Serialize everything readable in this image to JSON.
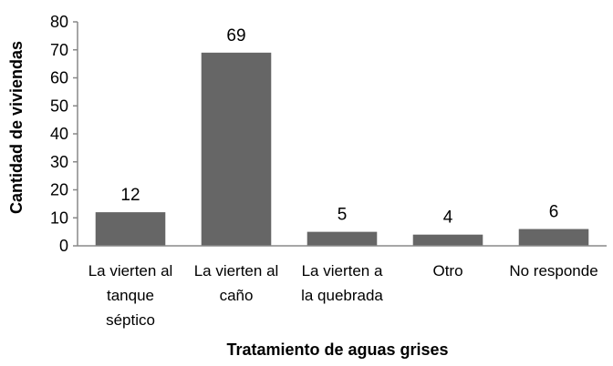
{
  "chart_data": {
    "type": "bar",
    "categories": [
      [
        "La vierten al",
        "tanque",
        "séptico"
      ],
      [
        "La vierten al",
        "caño"
      ],
      [
        "La vierten a",
        "la quebrada"
      ],
      [
        "Otro"
      ],
      [
        "No responde"
      ]
    ],
    "values": [
      12,
      69,
      5,
      4,
      6
    ],
    "data_labels": [
      "12",
      "69",
      "5",
      "4",
      "6"
    ],
    "xlabel": "Tratamiento de aguas grises",
    "ylabel": "Cantidad de viviendas",
    "ylim": [
      0,
      80
    ],
    "yticks": [
      "0",
      "10",
      "20",
      "30",
      "40",
      "50",
      "60",
      "70",
      "80"
    ],
    "grid": false,
    "legend": "none",
    "bar_color": "#666666"
  }
}
